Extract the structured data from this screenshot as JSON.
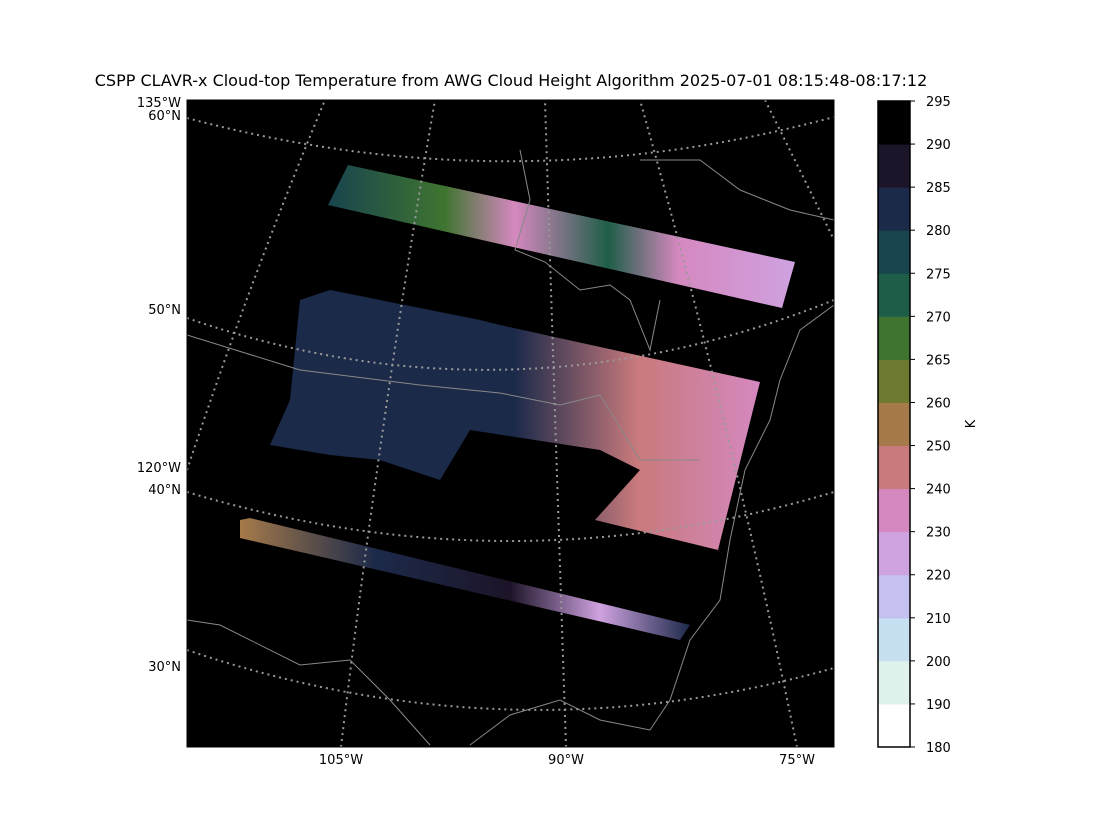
{
  "title": "CSPP CLAVR-x Cloud-top Temperature from AWG Cloud Height Algorithm 2025-07-01 08:15:48-08:17:12",
  "map_labels": {
    "left": [
      "135°W",
      "60°N",
      "50°N",
      "120°W",
      "40°N",
      "30°N"
    ],
    "bottom": [
      "105°W",
      "90°W",
      "75°W"
    ]
  },
  "colorbar": {
    "label": "K",
    "ticks": [
      180,
      190,
      200,
      210,
      220,
      230,
      240,
      250,
      260,
      265,
      270,
      275,
      280,
      285,
      290,
      295
    ],
    "colors": [
      "#ffffff",
      "#dff2ec",
      "#c6e0f2",
      "#c4c0f0",
      "#cfa2e0",
      "#d588bf",
      "#c87a7c",
      "#a67a4a",
      "#6e7a30",
      "#3f7430",
      "#1e5e48",
      "#18444e",
      "#1c2a4a",
      "#1c1428",
      "#000000"
    ]
  }
}
